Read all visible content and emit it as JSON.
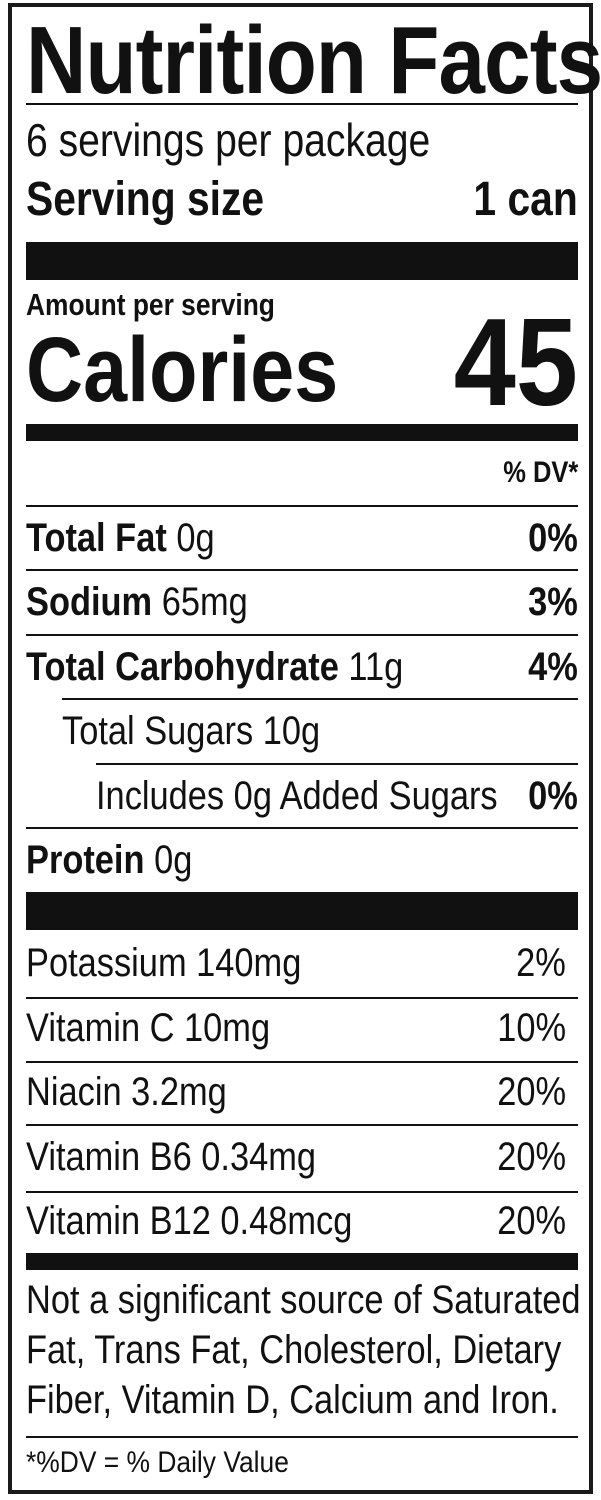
{
  "label": {
    "title": "Nutrition Facts",
    "servings_per_package": "6 servings per package",
    "serving_size_label": "Serving size",
    "serving_size_value": "1 can",
    "amount_per_serving": "Amount per serving",
    "calories_label": "Calories",
    "calories_value": "45",
    "dv_header": "% DV*",
    "nutrients": [
      {
        "name": "Total Fat",
        "amount": "0g",
        "dv": "0%"
      },
      {
        "name": "Sodium",
        "amount": "65mg",
        "dv": "3%"
      },
      {
        "name": "Total Carbohydrate",
        "amount": "11g",
        "dv": "4%"
      },
      {
        "name": "",
        "amount": "Total Sugars 10g",
        "dv": ""
      },
      {
        "name": "",
        "amount": "Includes 0g Added Sugars",
        "dv": "0%"
      },
      {
        "name": "Protein",
        "amount": "0g",
        "dv": ""
      }
    ],
    "vitamins": [
      {
        "text": "Potassium 140mg",
        "dv": "2%"
      },
      {
        "text": "Vitamin C 10mg",
        "dv": "10%"
      },
      {
        "text": "Niacin 3.2mg",
        "dv": "20%"
      },
      {
        "text": "Vitamin B6 0.34mg",
        "dv": "20%"
      },
      {
        "text": "Vitamin B12 0.48mcg",
        "dv": "20%"
      }
    ],
    "footnote_lines": [
      "Not a significant source of Saturated",
      "Fat, Trans Fat, Cholesterol, Dietary",
      "Fiber, Vitamin D, Calcium and Iron."
    ],
    "dv_note": "*%DV = % Daily Value"
  }
}
